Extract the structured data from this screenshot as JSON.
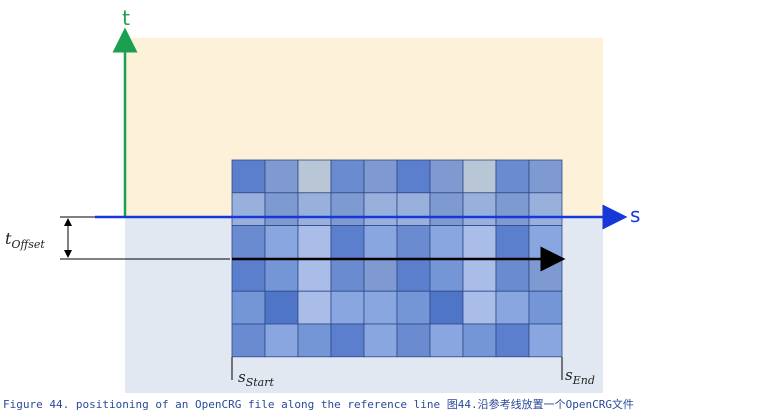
{
  "axes": {
    "t_label": "t",
    "s_label": "s"
  },
  "offset_label": {
    "base": "t",
    "sub": "Offset"
  },
  "start_label": {
    "base": "s",
    "sub": "Start"
  },
  "end_label": {
    "base": "s",
    "sub": "End"
  },
  "caption": "Figure 44. positioning of an OpenCRG file along the reference line 图44.沿参考线放置一个OpenCRG文件"
}
